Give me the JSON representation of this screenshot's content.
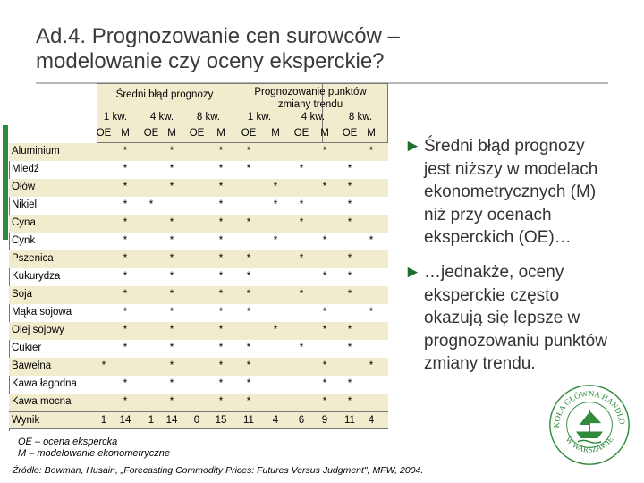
{
  "slide": {
    "title_line1": "Ad.4. Prognozowanie cen surowców –",
    "title_line2": "modelowanie czy oceny eksperckie?"
  },
  "table": {
    "group1_title": "Średni błąd prognozy",
    "group2_title_line1": "Prognozowanie punktów",
    "group2_title_line2": "zmiany trendu",
    "horizons": [
      "1 kw.",
      "4 kw.",
      "8 kw.",
      "1 kw.",
      "4 kw.",
      "8 kw."
    ],
    "subcols": [
      "OE",
      "M",
      "OE",
      "M",
      "OE",
      "M",
      "OE",
      "M",
      "OE",
      "M",
      "OE",
      "M"
    ],
    "rows": [
      {
        "label": "Aluminium",
        "cells": [
          "",
          "*",
          "",
          "*",
          "",
          "*",
          "*",
          "",
          "",
          "*",
          "",
          "*"
        ]
      },
      {
        "label": "Miedź",
        "cells": [
          "",
          "*",
          "",
          "*",
          "",
          "*",
          "*",
          "",
          "*",
          "",
          "*",
          ""
        ]
      },
      {
        "label": "Ołów",
        "cells": [
          "",
          "*",
          "",
          "*",
          "",
          "*",
          "",
          "*",
          "",
          "*",
          "*",
          ""
        ]
      },
      {
        "label": "Nikiel",
        "cells": [
          "",
          "*",
          "*",
          "",
          "",
          "*",
          "",
          "*",
          "*",
          "",
          "*",
          ""
        ]
      },
      {
        "label": "Cyna",
        "cells": [
          "",
          "*",
          "",
          "*",
          "",
          "*",
          "*",
          "",
          "*",
          "",
          "*",
          ""
        ]
      },
      {
        "label": "Cynk",
        "cells": [
          "",
          "*",
          "",
          "*",
          "",
          "*",
          "",
          "*",
          "",
          "*",
          "",
          "*"
        ]
      },
      {
        "label": "Pszenica",
        "cells": [
          "",
          "*",
          "",
          "*",
          "",
          "*",
          "*",
          "",
          "*",
          "",
          "*",
          ""
        ]
      },
      {
        "label": "Kukurydza",
        "cells": [
          "",
          "*",
          "",
          "*",
          "",
          "*",
          "*",
          "",
          "",
          "*",
          "*",
          ""
        ]
      },
      {
        "label": "Soja",
        "cells": [
          "",
          "*",
          "",
          "*",
          "",
          "*",
          "*",
          "",
          "*",
          "",
          "*",
          ""
        ]
      },
      {
        "label": "Mąka sojowa",
        "cells": [
          "",
          "*",
          "",
          "*",
          "",
          "*",
          "*",
          "",
          "",
          "*",
          "",
          "*"
        ]
      },
      {
        "label": "Olej sojowy",
        "cells": [
          "",
          "*",
          "",
          "*",
          "",
          "*",
          "",
          "*",
          "",
          "*",
          "*",
          ""
        ]
      },
      {
        "label": "Cukier",
        "cells": [
          "",
          "*",
          "",
          "*",
          "",
          "*",
          "*",
          "",
          "*",
          "",
          "*",
          ""
        ]
      },
      {
        "label": "Bawełna",
        "cells": [
          "*",
          "",
          "",
          "*",
          "",
          "*",
          "*",
          "",
          "",
          "*",
          "",
          "*"
        ]
      },
      {
        "label": "Kawa łagodna",
        "cells": [
          "",
          "*",
          "",
          "*",
          "",
          "*",
          "*",
          "",
          "",
          "*",
          "*",
          ""
        ]
      },
      {
        "label": "Kawa mocna",
        "cells": [
          "",
          "*",
          "",
          "*",
          "",
          "*",
          "*",
          "",
          "",
          "*",
          "*",
          ""
        ]
      }
    ],
    "wynik": {
      "label": "Wynik",
      "cells": [
        "1",
        "14",
        "1",
        "14",
        "0",
        "15",
        "11",
        "4",
        "6",
        "9",
        "11",
        "4"
      ]
    }
  },
  "legend": {
    "line1": "OE – ocena ekspercka",
    "line2": "M – modelowanie ekonometryczne"
  },
  "source": "Źródło: Bowman, Husain, „Forecasting Commodity Prices: Futures Versus Judgment\", MFW, 2004.",
  "bullets": [
    {
      "lines": [
        "Średni błąd prognozy",
        "jest niższy w modelach",
        "ekonometrycznych (M)",
        "niż przy ocenach",
        "eksperckich (OE)…"
      ]
    },
    {
      "lines": [
        "…jednakże, oceny",
        "eksperckie często",
        "okazują się lepsze w",
        "prognozowaniu punktów",
        "zmiany trendu."
      ]
    }
  ],
  "bullet_marker": "►",
  "colors": {
    "accent_green": "#2f8a3c",
    "table_shade": "#f2ecce",
    "title_gray": "#3b3b3b"
  },
  "seal": {
    "text_top": "SZKOŁA GŁÓWNA HANDLOWA",
    "text_bottom": "W WARSZAWIE",
    "icon": "ship-emblem-icon"
  }
}
